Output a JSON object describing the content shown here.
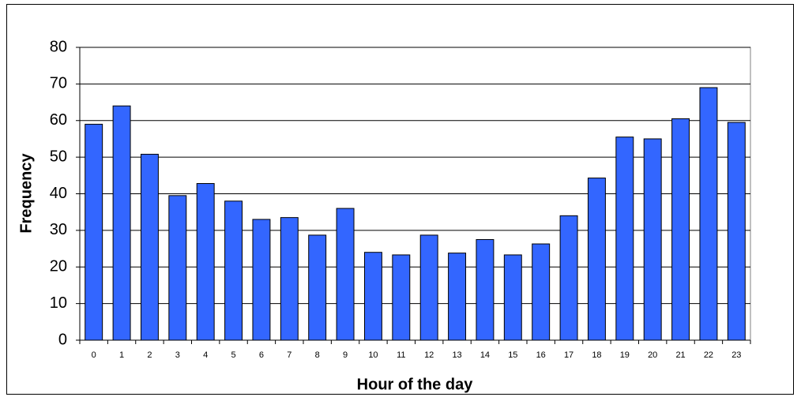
{
  "chart_data": {
    "type": "bar",
    "x_label": "Hour of the day",
    "y_label": "Frequency",
    "categories": [
      "0",
      "1",
      "2",
      "3",
      "4",
      "5",
      "6",
      "7",
      "8",
      "9",
      "10",
      "11",
      "12",
      "13",
      "14",
      "15",
      "16",
      "17",
      "18",
      "19",
      "20",
      "21",
      "22",
      "23"
    ],
    "values": [
      59,
      64,
      50.8,
      39.5,
      42.8,
      38,
      33,
      33.5,
      28.7,
      36,
      24,
      23.3,
      28.7,
      23.8,
      27.5,
      23.3,
      26.3,
      34,
      44.3,
      55.5,
      55,
      60.5,
      69,
      59.5
    ],
    "color": "#3366ff",
    "ylim": [
      0,
      80
    ],
    "yticks": [
      0,
      10,
      20,
      30,
      40,
      50,
      60,
      70,
      80
    ],
    "grid": true
  }
}
